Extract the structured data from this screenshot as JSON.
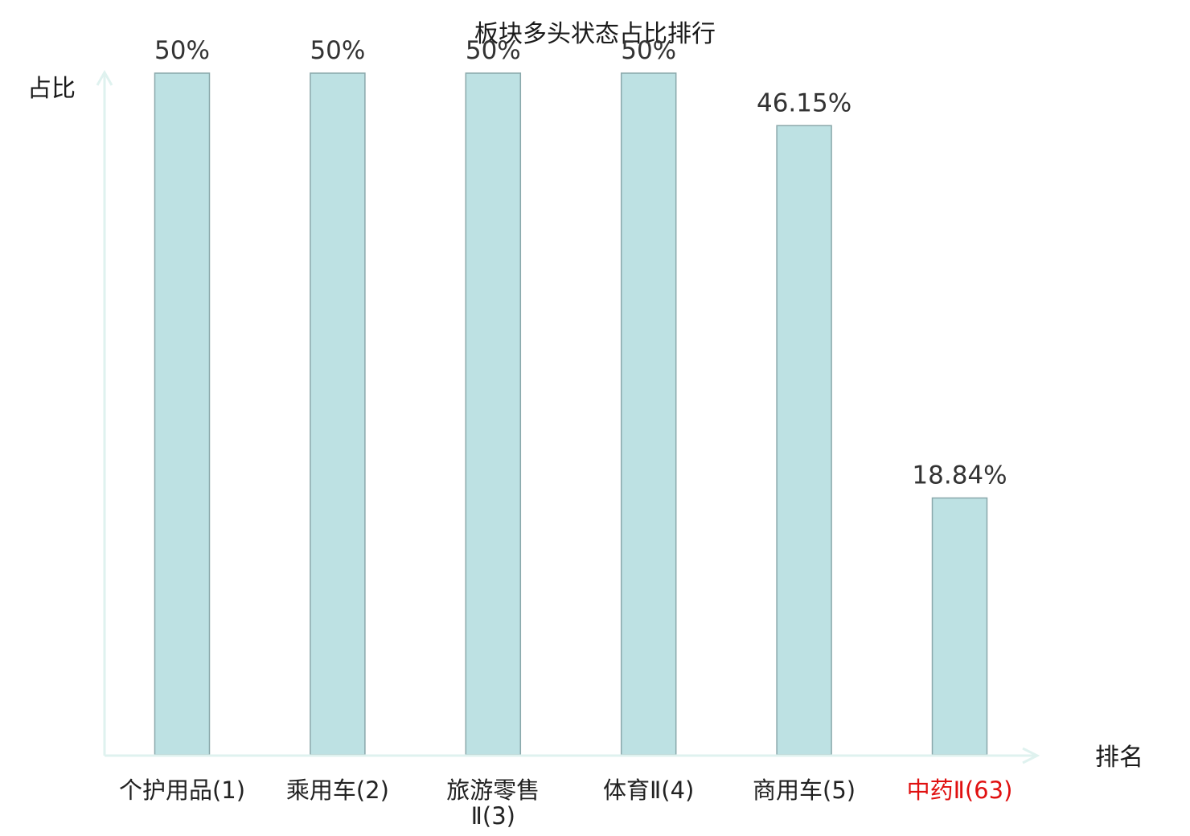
{
  "chart_data": {
    "type": "bar",
    "title": "板块多头状态占比排行",
    "ylabel": "占比",
    "xlabel": "排名",
    "ylim": [
      0,
      50
    ],
    "grid": false,
    "categories": [
      "个护用品(1)",
      "乘用车(2)",
      "旅游零售Ⅱ(3)",
      "体育Ⅱ(4)",
      "商用车(5)",
      "中药Ⅱ(63)"
    ],
    "values": [
      50,
      50,
      50,
      50,
      46.15,
      18.84
    ],
    "value_labels": [
      "50%",
      "50%",
      "50%",
      "50%",
      "46.15%",
      "18.84%"
    ],
    "highlight_index": 5
  },
  "colors": {
    "bar_fill": "#bde1e3",
    "bar_stroke": "#8aa8ab",
    "axis": "#dff2ef",
    "highlight_text": "#e01010",
    "text": "#222222"
  }
}
